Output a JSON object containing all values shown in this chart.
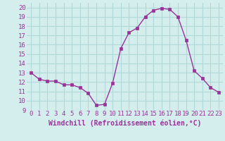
{
  "x": [
    0,
    1,
    2,
    3,
    4,
    5,
    6,
    7,
    8,
    9,
    10,
    11,
    12,
    13,
    14,
    15,
    16,
    17,
    18,
    19,
    20,
    21,
    22,
    23
  ],
  "y": [
    13.0,
    12.3,
    12.1,
    12.1,
    11.7,
    11.7,
    11.4,
    10.8,
    9.5,
    9.6,
    11.9,
    15.6,
    17.3,
    17.8,
    19.0,
    19.7,
    19.9,
    19.8,
    19.0,
    16.5,
    13.2,
    12.4,
    11.4,
    10.9
  ],
  "line_color": "#993399",
  "marker": "s",
  "markersize": 2.5,
  "linewidth": 1.0,
  "xlabel": "Windchill (Refroidissement éolien,°C)",
  "xlabel_fontsize": 7,
  "xlabel_color": "#993399",
  "ylabel_ticks": [
    9,
    10,
    11,
    12,
    13,
    14,
    15,
    16,
    17,
    18,
    19,
    20
  ],
  "xlim": [
    -0.5,
    23.5
  ],
  "ylim": [
    9,
    20.5
  ],
  "bg_color": "#d4eeee",
  "grid_color": "#b0d8d8",
  "tick_fontsize": 6.5,
  "tick_color": "#993399"
}
